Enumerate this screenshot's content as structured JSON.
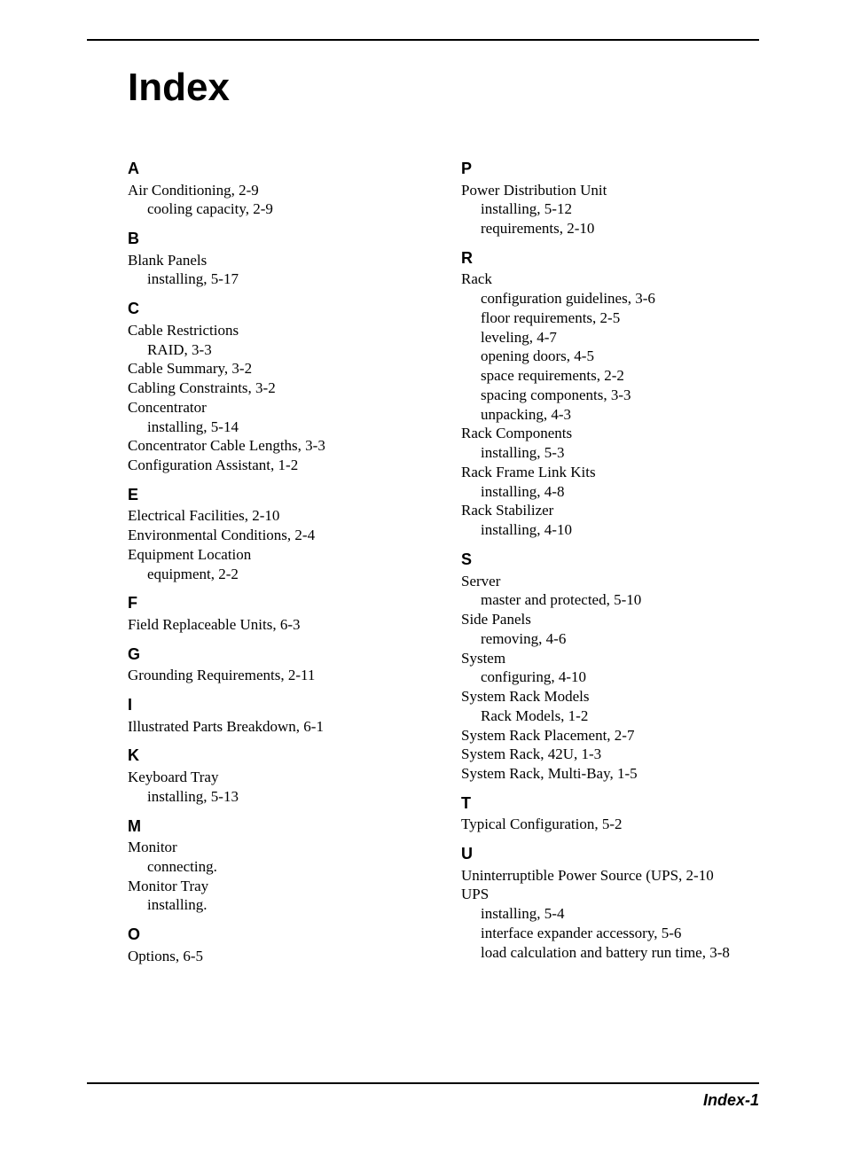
{
  "title": "Index",
  "page_number": "Index-1",
  "left": [
    {
      "letter": "A",
      "items": [
        {
          "t": "Air Conditioning, 2-9",
          "s": 0
        },
        {
          "t": "cooling capacity, 2-9",
          "s": 1
        }
      ]
    },
    {
      "letter": "B",
      "items": [
        {
          "t": "Blank Panels",
          "s": 0
        },
        {
          "t": "installing, 5-17",
          "s": 1
        }
      ]
    },
    {
      "letter": "C",
      "items": [
        {
          "t": "Cable Restrictions",
          "s": 0
        },
        {
          "t": "RAID, 3-3",
          "s": 1
        },
        {
          "t": "Cable Summary, 3-2",
          "s": 0
        },
        {
          "t": "Cabling Constraints, 3-2",
          "s": 0
        },
        {
          "t": "Concentrator",
          "s": 0
        },
        {
          "t": "installing, 5-14",
          "s": 1
        },
        {
          "t": "Concentrator Cable Lengths, 3-3",
          "s": 0
        },
        {
          "t": "Configuration Assistant, 1-2",
          "s": 0
        }
      ]
    },
    {
      "letter": "E",
      "items": [
        {
          "t": "Electrical Facilities, 2-10",
          "s": 0
        },
        {
          "t": "Environmental Conditions, 2-4",
          "s": 0
        },
        {
          "t": "Equipment Location",
          "s": 0
        },
        {
          "t": "equipment, 2-2",
          "s": 1
        }
      ]
    },
    {
      "letter": "F",
      "items": [
        {
          "t": "Field Replaceable Units, 6-3",
          "s": 0
        }
      ]
    },
    {
      "letter": "G",
      "items": [
        {
          "t": "Grounding Requirements, 2-11",
          "s": 0
        }
      ]
    },
    {
      "letter": "I",
      "items": [
        {
          "t": "Illustrated Parts Breakdown, 6-1",
          "s": 0
        }
      ]
    },
    {
      "letter": "K",
      "items": [
        {
          "t": "Keyboard Tray",
          "s": 0
        },
        {
          "t": "installing, 5-13",
          "s": 1
        }
      ]
    },
    {
      "letter": "M",
      "items": [
        {
          "t": "Monitor",
          "s": 0
        },
        {
          "t": "connecting.",
          "s": 1
        },
        {
          "t": "Monitor Tray",
          "s": 0
        },
        {
          "t": "installing.",
          "s": 1
        }
      ]
    },
    {
      "letter": "O",
      "items": [
        {
          "t": "Options, 6-5",
          "s": 0
        }
      ]
    }
  ],
  "right": [
    {
      "letter": "P",
      "items": [
        {
          "t": "Power Distribution Unit",
          "s": 0
        },
        {
          "t": "installing, 5-12",
          "s": 1
        },
        {
          "t": "requirements, 2-10",
          "s": 1
        }
      ]
    },
    {
      "letter": "R",
      "items": [
        {
          "t": "Rack",
          "s": 0
        },
        {
          "t": "configuration guidelines, 3-6",
          "s": 1
        },
        {
          "t": "floor requirements, 2-5",
          "s": 1
        },
        {
          "t": "leveling, 4-7",
          "s": 1
        },
        {
          "t": "opening doors, 4-5",
          "s": 1
        },
        {
          "t": "space requirements, 2-2",
          "s": 1
        },
        {
          "t": "spacing components, 3-3",
          "s": 1
        },
        {
          "t": "unpacking, 4-3",
          "s": 1
        },
        {
          "t": "Rack Components",
          "s": 0
        },
        {
          "t": "installing, 5-3",
          "s": 1
        },
        {
          "t": "Rack Frame Link Kits",
          "s": 0
        },
        {
          "t": "installing, 4-8",
          "s": 1
        },
        {
          "t": "Rack Stabilizer",
          "s": 0
        },
        {
          "t": "installing, 4-10",
          "s": 1
        }
      ]
    },
    {
      "letter": "S",
      "items": [
        {
          "t": "Server",
          "s": 0
        },
        {
          "t": "master and protected, 5-10",
          "s": 1
        },
        {
          "t": "Side Panels",
          "s": 0
        },
        {
          "t": "removing, 4-6",
          "s": 1
        },
        {
          "t": "System",
          "s": 0
        },
        {
          "t": "configuring, 4-10",
          "s": 1
        },
        {
          "t": "System Rack Models",
          "s": 0
        },
        {
          "t": "Rack Models, 1-2",
          "s": 1
        },
        {
          "t": "System Rack Placement, 2-7",
          "s": 0
        },
        {
          "t": "System Rack, 42U, 1-3",
          "s": 0
        },
        {
          "t": "System Rack, Multi-Bay, 1-5",
          "s": 0
        }
      ]
    },
    {
      "letter": "T",
      "items": [
        {
          "t": "Typical Configuration, 5-2",
          "s": 0
        }
      ]
    },
    {
      "letter": "U",
      "items": [
        {
          "t": "Uninterruptible Power Source (UPS, 2-10",
          "s": 0
        },
        {
          "t": "UPS",
          "s": 0
        },
        {
          "t": "installing, 5-4",
          "s": 1
        },
        {
          "t": "interface expander accessory, 5-6",
          "s": 1
        },
        {
          "t": "load calculation and battery run time, 3-8",
          "s": 1
        }
      ]
    }
  ]
}
